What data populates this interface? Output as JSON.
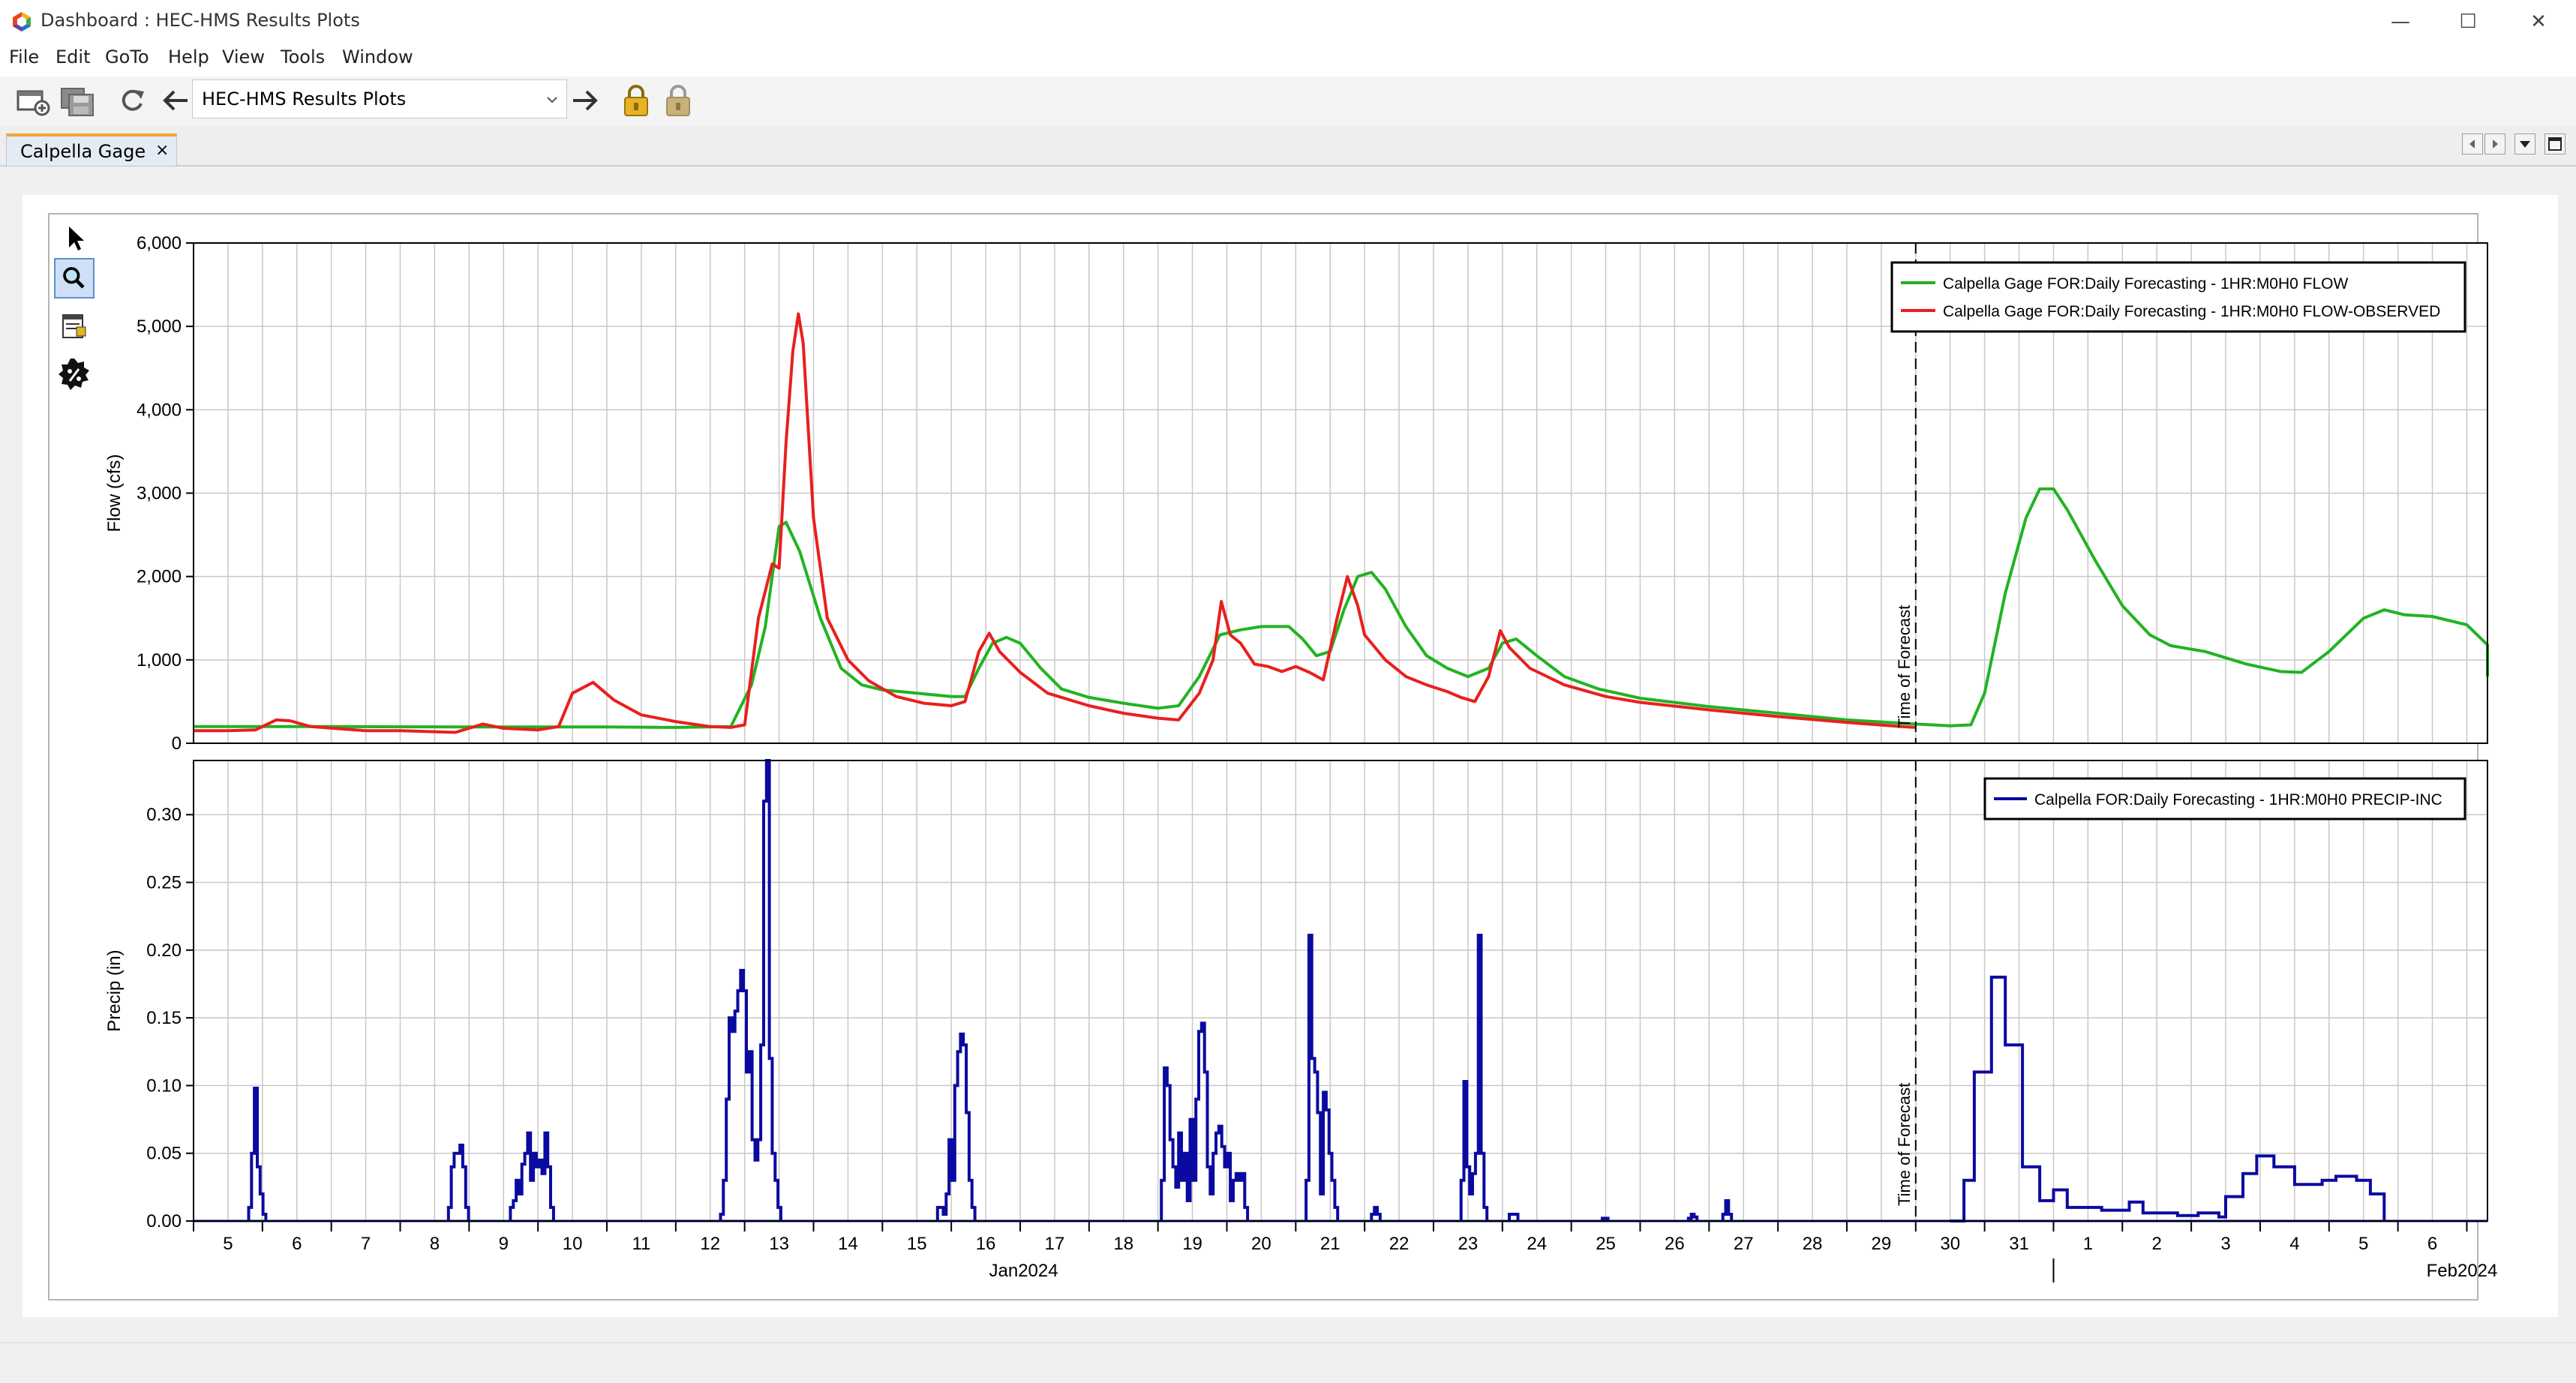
{
  "window": {
    "title": "Dashboard : HEC-HMS Results Plots",
    "controls": {
      "minimize": "—",
      "maximize": "☐",
      "close": "✕"
    }
  },
  "menu": [
    "File",
    "Edit",
    "GoTo",
    "Help",
    "View",
    "Tools",
    "Window"
  ],
  "toolbar": {
    "icons": [
      "new-dashboard-icon",
      "save-icon",
      "refresh-icon",
      "back-arrow-icon",
      "forward-arrow-icon",
      "lock-icon",
      "unlock-icon"
    ],
    "dashboard_select": "HEC-HMS Results Plots"
  },
  "tab": {
    "label": "Calpella Gage",
    "close": "×"
  },
  "tools": [
    "pointer-icon",
    "zoom-icon",
    "properties-icon",
    "badge-icon"
  ],
  "colors": {
    "flow": "#22b322",
    "observed": "#e8201e",
    "precip": "#0a0aa0",
    "grid": "#c8c8c8"
  },
  "chart_data": [
    {
      "type": "line",
      "ylabel": "Flow (cfs)",
      "ylim": [
        0,
        6000
      ],
      "yticks": [
        "0",
        "1,000",
        "2,000",
        "3,000",
        "4,000",
        "5,000",
        "6,000"
      ],
      "grid": true,
      "legend_position": "top-right",
      "x_unit": "day",
      "xlim": [
        5,
        38.3
      ],
      "annotation": "Time of Forecast",
      "forecast_time": 30,
      "series": [
        {
          "name": "Calpella Gage FOR:Daily Forecasting - 1HR:M0H0 FLOW",
          "color": "#22b322",
          "points": [
            [
              5,
              200
            ],
            [
              6,
              200
            ],
            [
              7,
              200
            ],
            [
              9,
              195
            ],
            [
              11,
              195
            ],
            [
              12,
              190
            ],
            [
              12.8,
              200
            ],
            [
              13.1,
              700
            ],
            [
              13.3,
              1400
            ],
            [
              13.5,
              2600
            ],
            [
              13.6,
              2650
            ],
            [
              13.8,
              2300
            ],
            [
              14.1,
              1500
            ],
            [
              14.4,
              900
            ],
            [
              14.7,
              700
            ],
            [
              15,
              640
            ],
            [
              15.5,
              600
            ],
            [
              16,
              560
            ],
            [
              16.2,
              560
            ],
            [
              16.4,
              900
            ],
            [
              16.6,
              1200
            ],
            [
              16.8,
              1270
            ],
            [
              17,
              1200
            ],
            [
              17.3,
              900
            ],
            [
              17.6,
              650
            ],
            [
              18,
              550
            ],
            [
              18.5,
              480
            ],
            [
              19,
              420
            ],
            [
              19.3,
              450
            ],
            [
              19.6,
              800
            ],
            [
              19.9,
              1300
            ],
            [
              20.2,
              1360
            ],
            [
              20.5,
              1400
            ],
            [
              20.9,
              1400
            ],
            [
              21.1,
              1250
            ],
            [
              21.3,
              1050
            ],
            [
              21.5,
              1100
            ],
            [
              21.7,
              1600
            ],
            [
              21.9,
              2000
            ],
            [
              22.1,
              2050
            ],
            [
              22.3,
              1850
            ],
            [
              22.6,
              1400
            ],
            [
              22.9,
              1050
            ],
            [
              23.2,
              900
            ],
            [
              23.5,
              800
            ],
            [
              23.8,
              900
            ],
            [
              24,
              1200
            ],
            [
              24.2,
              1250
            ],
            [
              24.5,
              1050
            ],
            [
              24.9,
              800
            ],
            [
              25.4,
              650
            ],
            [
              26,
              540
            ],
            [
              27,
              440
            ],
            [
              28,
              360
            ],
            [
              29,
              280
            ],
            [
              30,
              230
            ],
            [
              30.5,
              210
            ],
            [
              30.8,
              220
            ],
            [
              31,
              600
            ],
            [
              31.3,
              1800
            ],
            [
              31.6,
              2700
            ],
            [
              31.8,
              3050
            ],
            [
              32,
              3050
            ],
            [
              32.2,
              2800
            ],
            [
              32.6,
              2200
            ],
            [
              33,
              1650
            ],
            [
              33.4,
              1300
            ],
            [
              33.7,
              1170
            ],
            [
              34.2,
              1100
            ],
            [
              34.8,
              950
            ],
            [
              35.3,
              860
            ],
            [
              35.6,
              850
            ],
            [
              36,
              1100
            ],
            [
              36.5,
              1500
            ],
            [
              36.8,
              1600
            ],
            [
              37.1,
              1540
            ],
            [
              37.5,
              1520
            ],
            [
              38,
              1420
            ],
            [
              38.3,
              1180
            ],
            [
              38.8,
              920
            ],
            [
              39.1,
              800
            ]
          ]
        },
        {
          "name": "Calpella Gage FOR:Daily Forecasting - 1HR:M0H0 FLOW-OBSERVED",
          "color": "#e8201e",
          "points": [
            [
              5,
              150
            ],
            [
              5.5,
              150
            ],
            [
              5.9,
              160
            ],
            [
              6.2,
              280
            ],
            [
              6.4,
              270
            ],
            [
              6.7,
              200
            ],
            [
              7.5,
              150
            ],
            [
              8,
              150
            ],
            [
              8.8,
              130
            ],
            [
              9.2,
              230
            ],
            [
              9.5,
              180
            ],
            [
              10,
              160
            ],
            [
              10.3,
              200
            ],
            [
              10.5,
              600
            ],
            [
              10.8,
              730
            ],
            [
              11.1,
              520
            ],
            [
              11.5,
              340
            ],
            [
              12,
              260
            ],
            [
              12.5,
              200
            ],
            [
              12.8,
              190
            ],
            [
              13,
              220
            ],
            [
              13.2,
              1500
            ],
            [
              13.4,
              2150
            ],
            [
              13.5,
              2100
            ],
            [
              13.6,
              3600
            ],
            [
              13.7,
              4700
            ],
            [
              13.78,
              5150
            ],
            [
              13.85,
              4800
            ],
            [
              14,
              2700
            ],
            [
              14.2,
              1500
            ],
            [
              14.5,
              1000
            ],
            [
              14.8,
              750
            ],
            [
              15.2,
              560
            ],
            [
              15.6,
              480
            ],
            [
              16,
              450
            ],
            [
              16.2,
              500
            ],
            [
              16.4,
              1100
            ],
            [
              16.55,
              1320
            ],
            [
              16.7,
              1100
            ],
            [
              17,
              850
            ],
            [
              17.4,
              600
            ],
            [
              18,
              450
            ],
            [
              18.5,
              360
            ],
            [
              19,
              300
            ],
            [
              19.3,
              280
            ],
            [
              19.6,
              600
            ],
            [
              19.8,
              1000
            ],
            [
              19.92,
              1700
            ],
            [
              20.05,
              1300
            ],
            [
              20.2,
              1200
            ],
            [
              20.4,
              950
            ],
            [
              20.6,
              920
            ],
            [
              20.8,
              860
            ],
            [
              21,
              920
            ],
            [
              21.2,
              850
            ],
            [
              21.4,
              760
            ],
            [
              21.6,
              1500
            ],
            [
              21.75,
              2000
            ],
            [
              21.9,
              1650
            ],
            [
              22,
              1300
            ],
            [
              22.3,
              1000
            ],
            [
              22.6,
              800
            ],
            [
              22.9,
              700
            ],
            [
              23.2,
              620
            ],
            [
              23.4,
              550
            ],
            [
              23.6,
              500
            ],
            [
              23.8,
              800
            ],
            [
              23.97,
              1350
            ],
            [
              24.1,
              1150
            ],
            [
              24.4,
              900
            ],
            [
              24.9,
              700
            ],
            [
              25.5,
              560
            ],
            [
              26,
              490
            ],
            [
              27,
              400
            ],
            [
              28,
              320
            ],
            [
              29,
              250
            ],
            [
              29.8,
              200
            ],
            [
              30,
              190
            ]
          ]
        }
      ]
    },
    {
      "type": "bar",
      "ylabel": "Precip (in)",
      "ylim": [
        0,
        0.34
      ],
      "yticks": [
        "0.00",
        "0.05",
        "0.10",
        "0.15",
        "0.20",
        "0.25",
        "0.30"
      ],
      "grid": true,
      "legend_position": "top-right",
      "x_unit": "day",
      "xlim": [
        5,
        38.3
      ],
      "annotation": "Time of Forecast",
      "forecast_time": 30,
      "xticks": [
        "5",
        "6",
        "7",
        "8",
        "9",
        "10",
        "11",
        "12",
        "13",
        "14",
        "15",
        "16",
        "17",
        "18",
        "19",
        "20",
        "21",
        "22",
        "23",
        "24",
        "25",
        "26",
        "27",
        "28",
        "29",
        "30",
        "31",
        "1",
        "2",
        "3",
        "4",
        "5",
        "6"
      ],
      "xgroups": [
        {
          "label": "Jan2024"
        },
        {
          "label": "Feb2024"
        }
      ],
      "series": [
        {
          "name": "Calpella FOR:Daily Forecasting - 1HR:M0H0 PRECIP-INC",
          "color": "#0a0aa0",
          "step": 0.0417,
          "bursts": [
            {
              "start": 5.8,
              "values": [
                0.01,
                0.05,
                0.098,
                0.04,
                0.02,
                0.005
              ]
            },
            {
              "start": 8.7,
              "values": [
                0.01,
                0.04,
                0.05,
                0.05,
                0.056,
                0.04,
                0.01
              ]
            },
            {
              "start": 9.6,
              "values": [
                0.01,
                0.015,
                0.03,
                0.02,
                0.042,
                0.05,
                0.065,
                0.03,
                0.05,
                0.04,
                0.045,
                0.035,
                0.065,
                0.04,
                0.01
              ]
            },
            {
              "start": 12.65,
              "values": [
                0.005,
                0.03,
                0.09,
                0.15,
                0.14,
                0.155,
                0.17,
                0.185,
                0.17,
                0.11,
                0.125,
                0.06,
                0.045,
                0.06,
                0.13,
                0.31,
                0.34,
                0.12,
                0.05,
                0.03,
                0.01
              ]
            },
            {
              "start": 15.8,
              "values": [
                0.01,
                0.01,
                0.005,
                0.02,
                0.06,
                0.03,
                0.1,
                0.125,
                0.138,
                0.13,
                0.08,
                0.03,
                0.01
              ]
            },
            {
              "start": 19.05,
              "values": [
                0.03,
                0.113,
                0.1,
                0.06,
                0.04,
                0.025,
                0.065,
                0.03,
                0.05,
                0.015,
                0.075,
                0.03,
                0.09,
                0.14,
                0.146,
                0.11,
                0.04,
                0.02,
                0.05,
                0.065,
                0.07,
                0.055,
                0.04,
                0.05,
                0.015,
                0.03,
                0.035,
                0.03,
                0.035,
                0.01
              ]
            },
            {
              "start": 21.15,
              "values": [
                0.03,
                0.211,
                0.12,
                0.11,
                0.08,
                0.02,
                0.095,
                0.082,
                0.05,
                0.03,
                0.01
              ]
            },
            {
              "start": 22.1,
              "values": [
                0.005,
                0.01,
                0.005
              ]
            },
            {
              "start": 23.4,
              "values": [
                0.03,
                0.103,
                0.04,
                0.02,
                0.035,
                0.05,
                0.211,
                0.05,
                0.01
              ]
            },
            {
              "start": 24.1,
              "values": [
                0.005,
                0.005,
                0.005
              ]
            },
            {
              "start": 25.45,
              "values": [
                0.002,
                0.002
              ]
            },
            {
              "start": 26.7,
              "values": [
                0.002,
                0.005,
                0.003
              ]
            },
            {
              "start": 27.2,
              "values": [
                0.005,
                0.015,
                0.005
              ]
            }
          ],
          "steps": [
            [
              30.5,
              0
            ],
            [
              30.7,
              0.03
            ],
            [
              30.85,
              0.11
            ],
            [
              31.1,
              0.18
            ],
            [
              31.3,
              0.13
            ],
            [
              31.55,
              0.04
            ],
            [
              31.8,
              0.015
            ],
            [
              32,
              0.023
            ],
            [
              32.2,
              0.01
            ],
            [
              32.7,
              0.008
            ],
            [
              33.1,
              0.014
            ],
            [
              33.3,
              0.006
            ],
            [
              33.8,
              0.004
            ],
            [
              34.1,
              0.006
            ],
            [
              34.4,
              0.003
            ],
            [
              34.5,
              0.018
            ],
            [
              34.75,
              0.035
            ],
            [
              34.95,
              0.048
            ],
            [
              35.2,
              0.04
            ],
            [
              35.5,
              0.027
            ],
            [
              35.9,
              0.03
            ],
            [
              36.1,
              0.033
            ],
            [
              36.4,
              0.03
            ],
            [
              36.6,
              0.02
            ],
            [
              36.8,
              0
            ]
          ]
        }
      ]
    }
  ]
}
